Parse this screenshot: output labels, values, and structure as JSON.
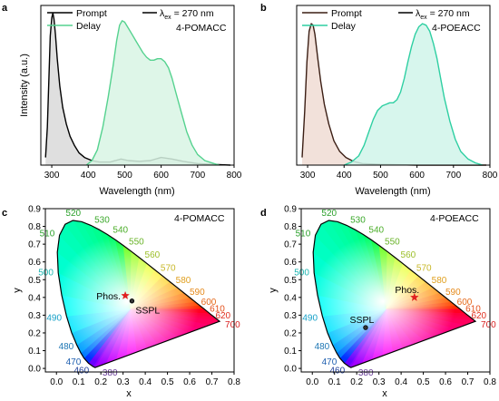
{
  "chart_data": [
    {
      "panel": "a",
      "type": "line",
      "xlabel": "Wavelength (nm)",
      "ylabel": "Intensity (a.u.)",
      "xlim": [
        270,
        800
      ],
      "ylim": [
        0,
        1.05
      ],
      "xticks": [
        300,
        400,
        500,
        600,
        700,
        800
      ],
      "compound": "4-POMACC",
      "excitation": {
        "symbol": "λ",
        "sub": "ex",
        "text": " = 270 nm"
      },
      "legend_position": "top-left",
      "series": [
        {
          "name": "Prompt",
          "color": "#000000",
          "fill": "#d9d9d9",
          "points": [
            [
              283,
              0.05
            ],
            [
              288,
              0.25
            ],
            [
              292,
              0.55
            ],
            [
              296,
              0.85
            ],
            [
              300,
              0.97
            ],
            [
              303,
              1.0
            ],
            [
              306,
              0.96
            ],
            [
              310,
              0.86
            ],
            [
              315,
              0.7
            ],
            [
              322,
              0.52
            ],
            [
              330,
              0.38
            ],
            [
              340,
              0.27
            ],
            [
              350,
              0.19
            ],
            [
              362,
              0.13
            ],
            [
              375,
              0.08
            ],
            [
              390,
              0.05
            ],
            [
              410,
              0.03
            ],
            [
              430,
              0.02
            ],
            [
              460,
              0.02
            ],
            [
              490,
              0.04
            ],
            [
              510,
              0.03
            ],
            [
              540,
              0.025
            ],
            [
              570,
              0.03
            ],
            [
              600,
              0.05
            ],
            [
              630,
              0.04
            ],
            [
              660,
              0.025
            ],
            [
              700,
              0.01
            ],
            [
              740,
              0.005
            ],
            [
              790,
              0.0
            ]
          ]
        },
        {
          "name": "Delay",
          "color": "#55d28f",
          "fill": "#d8f5e4",
          "points": [
            [
              395,
              0.0
            ],
            [
              410,
              0.03
            ],
            [
              425,
              0.1
            ],
            [
              440,
              0.25
            ],
            [
              455,
              0.45
            ],
            [
              468,
              0.65
            ],
            [
              478,
              0.82
            ],
            [
              486,
              0.92
            ],
            [
              493,
              0.95
            ],
            [
              500,
              0.94
            ],
            [
              510,
              0.9
            ],
            [
              520,
              0.86
            ],
            [
              530,
              0.82
            ],
            [
              540,
              0.78
            ],
            [
              550,
              0.74
            ],
            [
              560,
              0.71
            ],
            [
              570,
              0.69
            ],
            [
              580,
              0.69
            ],
            [
              590,
              0.7
            ],
            [
              600,
              0.7
            ],
            [
              610,
              0.68
            ],
            [
              620,
              0.64
            ],
            [
              630,
              0.57
            ],
            [
              640,
              0.48
            ],
            [
              655,
              0.35
            ],
            [
              670,
              0.22
            ],
            [
              685,
              0.13
            ],
            [
              700,
              0.07
            ],
            [
              720,
              0.03
            ],
            [
              745,
              0.01
            ],
            [
              760,
              0.0
            ]
          ]
        }
      ]
    },
    {
      "panel": "b",
      "type": "line",
      "xlabel": "Wavelength (nm)",
      "ylabel": "",
      "xlim": [
        270,
        800
      ],
      "ylim": [
        0,
        1.05
      ],
      "xticks": [
        300,
        400,
        500,
        600,
        700,
        800
      ],
      "compound": "4-POEACC",
      "excitation": {
        "symbol": "λ",
        "sub": "ex",
        "text": " = 270 nm"
      },
      "legend_position": "top-left",
      "series": [
        {
          "name": "Prompt",
          "color": "#3b1e14",
          "fill": "#f0dcd4",
          "points": [
            [
              285,
              0.05
            ],
            [
              292,
              0.35
            ],
            [
              298,
              0.68
            ],
            [
              304,
              0.88
            ],
            [
              310,
              0.93
            ],
            [
              315,
              0.92
            ],
            [
              320,
              0.86
            ],
            [
              328,
              0.7
            ],
            [
              336,
              0.55
            ],
            [
              346,
              0.4
            ],
            [
              358,
              0.27
            ],
            [
              372,
              0.16
            ],
            [
              388,
              0.09
            ],
            [
              405,
              0.05
            ],
            [
              425,
              0.025
            ],
            [
              450,
              0.01
            ],
            [
              500,
              0.005
            ],
            [
              600,
              0.0
            ],
            [
              790,
              0.0
            ]
          ]
        },
        {
          "name": "Delay",
          "color": "#2ecfa2",
          "fill": "#d0f4ea",
          "points": [
            [
              400,
              0.0
            ],
            [
              420,
              0.02
            ],
            [
              440,
              0.06
            ],
            [
              455,
              0.13
            ],
            [
              468,
              0.22
            ],
            [
              480,
              0.3
            ],
            [
              492,
              0.36
            ],
            [
              505,
              0.39
            ],
            [
              515,
              0.4
            ],
            [
              525,
              0.41
            ],
            [
              535,
              0.41
            ],
            [
              545,
              0.43
            ],
            [
              555,
              0.48
            ],
            [
              565,
              0.57
            ],
            [
              575,
              0.68
            ],
            [
              585,
              0.78
            ],
            [
              595,
              0.86
            ],
            [
              605,
              0.91
            ],
            [
              615,
              0.93
            ],
            [
              625,
              0.92
            ],
            [
              635,
              0.88
            ],
            [
              645,
              0.8
            ],
            [
              655,
              0.7
            ],
            [
              665,
              0.57
            ],
            [
              675,
              0.44
            ],
            [
              690,
              0.29
            ],
            [
              705,
              0.17
            ],
            [
              720,
              0.09
            ],
            [
              740,
              0.04
            ],
            [
              760,
              0.015
            ],
            [
              780,
              0.0
            ]
          ]
        }
      ]
    },
    {
      "panel": "c",
      "type": "scatter",
      "chart_kind": "CIE 1931 chromaticity diagram",
      "xlabel": "x",
      "ylabel": "y",
      "xlim": [
        -0.05,
        0.8
      ],
      "ylim": [
        -0.02,
        0.9
      ],
      "xticks": [
        "0.0",
        "0.1",
        "0.2",
        "0.3",
        "0.4",
        "0.5",
        "0.6",
        "0.7",
        "0.8"
      ],
      "yticks": [
        "0.0",
        "0.1",
        "0.2",
        "0.3",
        "0.4",
        "0.5",
        "0.6",
        "0.7",
        "0.8",
        "0.9"
      ],
      "compound": "4-POMACC",
      "wavelength_labels": [
        "380",
        "460",
        "470",
        "480",
        "490",
        "500",
        "510",
        "520",
        "530",
        "540",
        "550",
        "560",
        "570",
        "580",
        "590",
        "600",
        "610",
        "620",
        "700"
      ],
      "points": [
        {
          "label": "Phos.",
          "x": 0.31,
          "y": 0.41,
          "marker": "star",
          "color": "#e02020"
        },
        {
          "label": "SSPL",
          "x": 0.34,
          "y": 0.38,
          "marker": "circle",
          "color": "#000000"
        }
      ]
    },
    {
      "panel": "d",
      "type": "scatter",
      "chart_kind": "CIE 1931 chromaticity diagram",
      "xlabel": "x",
      "ylabel": "y",
      "xlim": [
        -0.05,
        0.8
      ],
      "ylim": [
        -0.02,
        0.9
      ],
      "xticks": [
        "0.0",
        "0.1",
        "0.2",
        "0.3",
        "0.4",
        "0.5",
        "0.6",
        "0.7",
        "0.8"
      ],
      "yticks": [
        "0.0",
        "0.1",
        "0.2",
        "0.3",
        "0.4",
        "0.5",
        "0.6",
        "0.7",
        "0.8",
        "0.9"
      ],
      "compound": "4-POEACC",
      "wavelength_labels": [
        "380",
        "460",
        "470",
        "480",
        "490",
        "500",
        "510",
        "520",
        "530",
        "540",
        "550",
        "560",
        "570",
        "580",
        "590",
        "600",
        "610",
        "620",
        "700"
      ],
      "points": [
        {
          "label": "Phos.",
          "x": 0.46,
          "y": 0.4,
          "marker": "star",
          "color": "#e02020"
        },
        {
          "label": "SSPL",
          "x": 0.24,
          "y": 0.23,
          "marker": "circle",
          "color": "#000000"
        }
      ]
    }
  ],
  "cie_locus": [
    [
      380,
      0.1741,
      0.005
    ],
    [
      440,
      0.1644,
      0.0109
    ],
    [
      460,
      0.144,
      0.0297
    ],
    [
      470,
      0.1241,
      0.0578
    ],
    [
      475,
      0.1096,
      0.0868
    ],
    [
      480,
      0.0913,
      0.1327
    ],
    [
      485,
      0.0687,
      0.2007
    ],
    [
      490,
      0.0454,
      0.295
    ],
    [
      495,
      0.0235,
      0.4127
    ],
    [
      500,
      0.0082,
      0.5384
    ],
    [
      505,
      0.0039,
      0.6548
    ],
    [
      510,
      0.0139,
      0.7502
    ],
    [
      515,
      0.0389,
      0.812
    ],
    [
      520,
      0.0743,
      0.8338
    ],
    [
      525,
      0.1142,
      0.8262
    ],
    [
      530,
      0.1547,
      0.8059
    ],
    [
      535,
      0.1929,
      0.7816
    ],
    [
      540,
      0.2296,
      0.7543
    ],
    [
      545,
      0.2658,
      0.7243
    ],
    [
      550,
      0.3016,
      0.6923
    ],
    [
      555,
      0.3373,
      0.6589
    ],
    [
      560,
      0.3731,
      0.6245
    ],
    [
      565,
      0.4087,
      0.5896
    ],
    [
      570,
      0.4441,
      0.5547
    ],
    [
      575,
      0.4788,
      0.5202
    ],
    [
      580,
      0.5125,
      0.4866
    ],
    [
      585,
      0.5448,
      0.4544
    ],
    [
      590,
      0.5752,
      0.4242
    ],
    [
      595,
      0.6029,
      0.3965
    ],
    [
      600,
      0.627,
      0.3725
    ],
    [
      605,
      0.6482,
      0.3514
    ],
    [
      610,
      0.6658,
      0.334
    ],
    [
      620,
      0.6915,
      0.3083
    ],
    [
      630,
      0.7079,
      0.292
    ],
    [
      640,
      0.719,
      0.2809
    ],
    [
      700,
      0.7347,
      0.2653
    ]
  ],
  "wl_label_colors": {
    "380": "#6a3d9a",
    "460": "#1f3f9a",
    "470": "#1f5fb0",
    "480": "#1f77b4",
    "490": "#17a1c8",
    "500": "#1cb5b0",
    "510": "#2ca02c",
    "520": "#2ca02c",
    "530": "#3aa82a",
    "540": "#4cae2a",
    "550": "#6ab42a",
    "560": "#9cbf2a",
    "570": "#c8b82a",
    "580": "#e0a020",
    "590": "#e58a1c",
    "600": "#e56a1c",
    "610": "#e4501a",
    "620": "#e03020",
    "700": "#d81e1e"
  }
}
